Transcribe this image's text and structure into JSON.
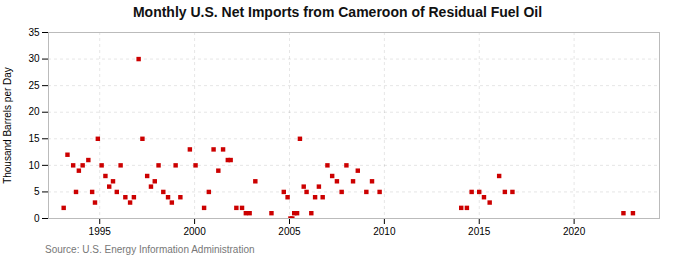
{
  "chart_data": {
    "type": "scatter",
    "title": "Monthly U.S. Net Imports from Cameroon of Residual Fuel Oil",
    "ylabel": "Thousand Barrels per Day",
    "source": "Source: U.S. Energy Information Administration",
    "color": "#cc0000",
    "marker": "square",
    "grid": true,
    "xlim": [
      1992.3,
      2024.5
    ],
    "xticks": [
      1995,
      2000,
      2005,
      2010,
      2015,
      2020
    ],
    "ylim": [
      0,
      35
    ],
    "yticks": [
      0,
      5,
      10,
      15,
      20,
      25,
      30,
      35
    ],
    "x": [
      1993.1,
      1993.3,
      1993.6,
      1993.75,
      1993.9,
      1994.1,
      1994.4,
      1994.6,
      1994.75,
      1994.9,
      1995.1,
      1995.3,
      1995.5,
      1995.7,
      1995.9,
      1996.1,
      1996.35,
      1996.6,
      1996.8,
      1997.05,
      1997.25,
      1997.5,
      1997.7,
      1997.9,
      1998.1,
      1998.35,
      1998.6,
      1998.8,
      1999.0,
      1999.25,
      1999.75,
      2000.05,
      2000.5,
      2000.75,
      2001.0,
      2001.25,
      2001.5,
      2001.75,
      2001.9,
      2002.2,
      2002.5,
      2002.7,
      2002.9,
      2003.2,
      2004.05,
      2004.7,
      2004.9,
      2005.05,
      2005.15,
      2005.25,
      2005.4,
      2005.55,
      2005.75,
      2005.9,
      2006.15,
      2006.35,
      2006.55,
      2006.75,
      2007.0,
      2007.25,
      2007.5,
      2007.75,
      2008.0,
      2008.35,
      2008.6,
      2009.05,
      2009.35,
      2009.75,
      2014.05,
      2014.35,
      2014.6,
      2015.0,
      2015.25,
      2015.55,
      2016.05,
      2016.35,
      2016.75,
      2022.6,
      2023.1
    ],
    "values": [
      2,
      12,
      10,
      5,
      9,
      10,
      11,
      5,
      3,
      15,
      10,
      8,
      6,
      7,
      5,
      10,
      4,
      3,
      4,
      30,
      15,
      8,
      6,
      7,
      10,
      5,
      4,
      3,
      10,
      4,
      13,
      10,
      2,
      5,
      13,
      9,
      13,
      11,
      11,
      2,
      2,
      1,
      1,
      7,
      1,
      5,
      4,
      0,
      0,
      1,
      1,
      15,
      6,
      5,
      1,
      4,
      6,
      4,
      10,
      8,
      7,
      5,
      10,
      7,
      9,
      5,
      7,
      5,
      2,
      2,
      5,
      5,
      4,
      3,
      8,
      5,
      5,
      1,
      1
    ]
  }
}
